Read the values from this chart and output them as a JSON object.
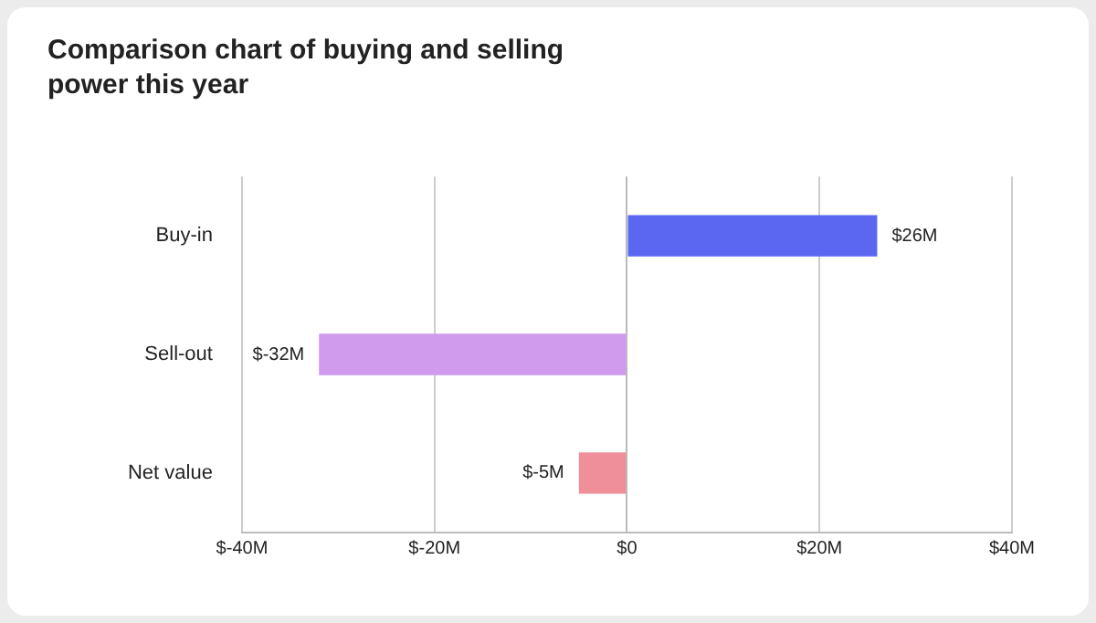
{
  "chart_data": {
    "type": "bar",
    "orientation": "horizontal",
    "title": "Comparison chart of buying and selling power this year",
    "categories": [
      "Buy-in",
      "Sell-out",
      "Net value"
    ],
    "values": [
      26,
      -32,
      -5
    ],
    "colors": [
      "#5b67f1",
      "#d09bec",
      "#ef8f9a"
    ],
    "value_labels": [
      "$26M",
      "$-32M",
      "$-5M"
    ],
    "xlim": [
      -40,
      40
    ],
    "xticks": [
      {
        "value": -40,
        "label": "$-40M"
      },
      {
        "value": -20,
        "label": "$-20M"
      },
      {
        "value": 0,
        "label": "$0"
      },
      {
        "value": 20,
        "label": "$20M"
      },
      {
        "value": 40,
        "label": "$40M"
      }
    ],
    "grid": "x",
    "legend": false
  }
}
